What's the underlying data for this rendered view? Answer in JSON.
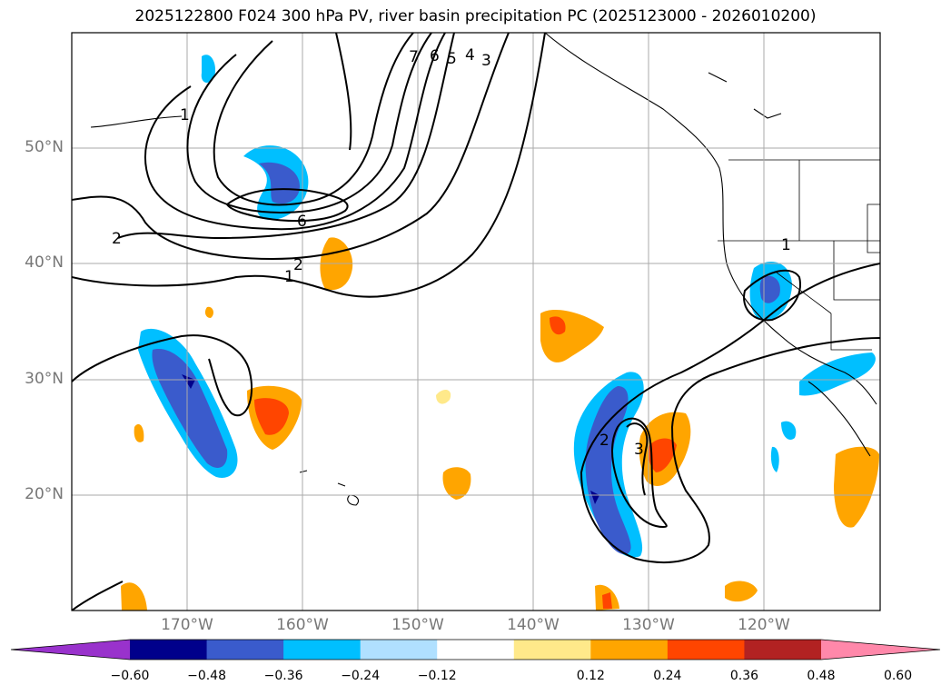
{
  "title": "2025122800 F024 300 hPa PV, river basin precipitation PC (2025123000 - 2026010200)",
  "lat_labels": [
    {
      "text": "50°N",
      "lat": 50
    },
    {
      "text": "40°N",
      "lat": 40
    },
    {
      "text": "30°N",
      "lat": 30
    },
    {
      "text": "20°N",
      "lat": 20
    }
  ],
  "lon_labels": [
    {
      "text": "170°W",
      "lon": -170
    },
    {
      "text": "160°W",
      "lon": -160
    },
    {
      "text": "150°W",
      "lon": -150
    },
    {
      "text": "140°W",
      "lon": -140
    },
    {
      "text": "130°W",
      "lon": -130
    },
    {
      "text": "120°W",
      "lon": -120
    }
  ],
  "pv_contour_labels": [
    "1",
    "2",
    "6",
    "7",
    "6",
    "5",
    "4",
    "3",
    "2",
    "3",
    "1",
    "2",
    "1"
  ],
  "colorbar": {
    "ticks": [
      "−0.60",
      "−0.48",
      "−0.36",
      "−0.24",
      "−0.12",
      "0.12",
      "0.24",
      "0.36",
      "0.48",
      "0.60"
    ],
    "colors": [
      "#9932cc",
      "#00008b",
      "#3a5bcc",
      "#00bfff",
      "#b0e0ff",
      "#ffffff",
      "#ffe98a",
      "#ffa500",
      "#ff4500",
      "#b22222",
      "#ff88aa"
    ]
  }
}
